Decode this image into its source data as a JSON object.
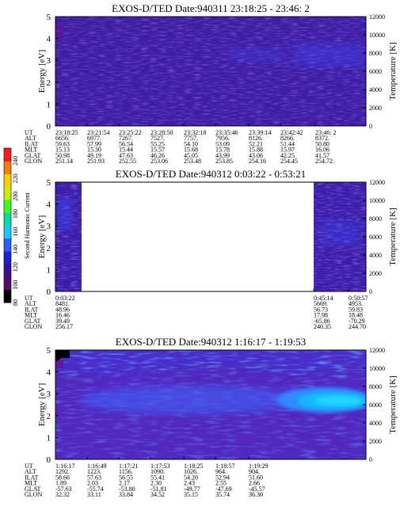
{
  "colorbar": {
    "label": "Second Harmonic Current",
    "ticks": [
      "80",
      "100",
      "120",
      "140",
      "160",
      "180",
      "200",
      "220",
      "240"
    ],
    "colors": [
      "#000000",
      "#5a0a6e",
      "#3a1090",
      "#2020d8",
      "#2a5cff",
      "#19c8ff",
      "#00e0a0",
      "#37ff22",
      "#c8f000",
      "#ffd000",
      "#ff7a00",
      "#ff1a1a"
    ]
  },
  "row_labels": [
    "UT",
    "ALT",
    "ILAT",
    "MLT",
    "GLAT",
    "GLON"
  ],
  "chart_data": [
    {
      "type": "heatmap",
      "title": "EXOS-D/TED   Date:940311  23:18:25 - 23:46: 2",
      "ylabel": "Energy [eV]",
      "y2label": "Temperature [K]",
      "ylim": [
        0,
        5
      ],
      "y2lim": [
        0,
        12000
      ],
      "yticks": [
        "0",
        "1",
        "2",
        "3",
        "4",
        "5"
      ],
      "y2ticks": [
        "0",
        "2000",
        "4000",
        "6000",
        "8000",
        "10000",
        "12000"
      ],
      "columns": [
        [
          "23:18:25",
          "6656.",
          "59.63",
          "15.13",
          "50.98",
          "251.14"
        ],
        [
          "23:21:54",
          "6977.",
          "57.99",
          "15.30",
          "49.19",
          "251.93"
        ],
        [
          "23:25:22",
          "7267.",
          "56.54",
          "15.44",
          "47.63",
          "252.55"
        ],
        [
          "23:28:50",
          "7527.",
          "55.25",
          "15.57",
          "46.26",
          "253.06"
        ],
        [
          "23:32:18",
          "7757.",
          "54.10",
          "15.68",
          "45.05",
          "253.48"
        ],
        [
          "23:35:46",
          "7956.",
          "53.09",
          "15.78",
          "43.99",
          "253.85"
        ],
        [
          "23:39:14",
          "8126.",
          "52.21",
          "15.88",
          "43.06",
          "254.16"
        ],
        [
          "23:42:42",
          "8266.",
          "51.44",
          "15.97",
          "42.25",
          "254.45"
        ],
        [
          "23:46: 2",
          "8372.",
          "50.80",
          "16.06",
          "41.57",
          "254.72"
        ]
      ]
    },
    {
      "type": "heatmap",
      "title": "EXOS-D/TED   Date:940312  0:03:22 - 0:53:21",
      "ylabel": "Energy [eV]",
      "y2label": "Temperature [K]",
      "ylim": [
        0,
        5
      ],
      "y2lim": [
        0,
        12000
      ],
      "yticks": [
        "0",
        "1",
        "2",
        "3",
        "4",
        "5"
      ],
      "y2ticks": [
        "0",
        "2000",
        "4000",
        "6000",
        "8000",
        "10000",
        "12000"
      ],
      "columns": [
        [
          "0:03:22",
          "8481.",
          "48.96",
          "16.46",
          "39.49",
          "256.17"
        ],
        [
          "0:45:14",
          "5669.",
          "56.73",
          "17.98",
          "-65.86",
          "240.35"
        ],
        [
          "0:50:57",
          "4953.",
          "59.83",
          "18.48",
          "-70.29",
          "244.70"
        ]
      ]
    },
    {
      "type": "heatmap",
      "title": "EXOS-D/TED   Date:940312  1:16:17 - 1:19:53",
      "ylabel": "Energy [eV]",
      "y2label": "Temperature [K]",
      "ylim": [
        0,
        5
      ],
      "y2lim": [
        0,
        12000
      ],
      "yticks": [
        "0",
        "1",
        "2",
        "3",
        "4",
        "5"
      ],
      "y2ticks": [
        "0",
        "2000",
        "4000",
        "6000",
        "8000",
        "10000",
        "12000"
      ],
      "columns": [
        [
          "1:16:17",
          "1292.",
          "58.66",
          "1.89",
          "-57.63",
          "32.32"
        ],
        [
          "1:16:49",
          "1223.",
          "57.63",
          "2.03",
          "-55.74",
          "33.11"
        ],
        [
          "1:17:21",
          "1156.",
          "56.55",
          "2.17",
          "-53.80",
          "33.84"
        ],
        [
          "1:17:53",
          "1090.",
          "55.41",
          "2.30",
          "-51.81",
          "34.52"
        ],
        [
          "1:18:25",
          "1026.",
          "54.20",
          "2.43",
          "-49.77",
          "35.15"
        ],
        [
          "1:18:57",
          "964.",
          "52.94",
          "2.55",
          "-47.69",
          "35.74"
        ],
        [
          "1:19:29",
          "904.",
          "51.60",
          "2.66",
          "-45.57",
          "36.30"
        ]
      ]
    }
  ]
}
